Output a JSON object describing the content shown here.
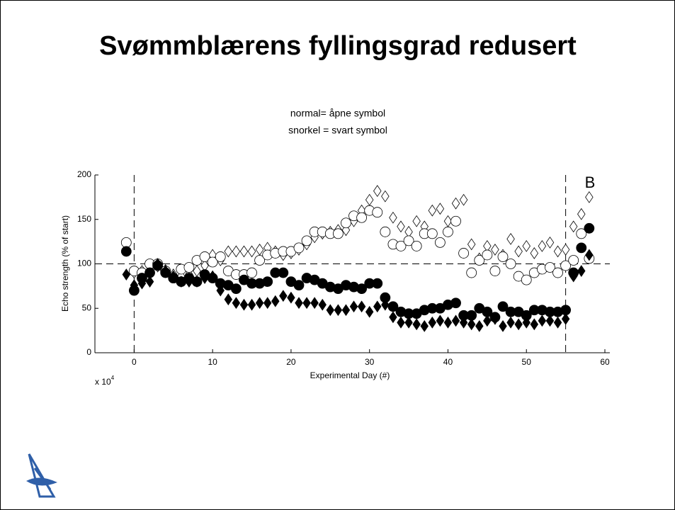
{
  "chart_data": {
    "type": "scatter",
    "title": "Svømmblærens fyllingsgrad redusert",
    "subtitle": [
      "normal= åpne symbol",
      "snorkel = svart symbol"
    ],
    "y_label": "Echo strength (% of start)",
    "x_label": "Experimental Day (#)",
    "x_multiplier": "x 10",
    "x_multiplier_exponent": "4",
    "panel_label": "B",
    "xlim": [
      -5,
      60
    ],
    "xticks": [
      0,
      10,
      20,
      30,
      40,
      50,
      60
    ],
    "ylim": [
      0,
      200
    ],
    "yticks": [
      0,
      50,
      100,
      150,
      200
    ],
    "vlines": [
      0,
      55
    ],
    "hline": 100,
    "x": [
      -1,
      0,
      1,
      2,
      3,
      4,
      5,
      6,
      7,
      8,
      9,
      10,
      11,
      12,
      13,
      14,
      15,
      16,
      17,
      18,
      19,
      20,
      21,
      22,
      23,
      24,
      25,
      26,
      27,
      28,
      29,
      30,
      31,
      32,
      33,
      34,
      35,
      36,
      37,
      38,
      39,
      40,
      41,
      42,
      43,
      44,
      45,
      46,
      47,
      48,
      49,
      50,
      51,
      52,
      53,
      54,
      55,
      56,
      57,
      58
    ],
    "series": [
      {
        "marker": "diamond",
        "filled": false,
        "color": "#000000",
        "values": [
          122,
          90,
          92,
          98,
          97,
          93,
          88,
          86,
          88,
          92,
          98,
          110,
          104,
          114,
          114,
          114,
          114,
          116,
          118,
          114,
          110,
          112,
          116,
          122,
          130,
          134,
          136,
          138,
          138,
          148,
          160,
          172,
          182,
          176,
          152,
          142,
          136,
          148,
          142,
          160,
          162,
          148,
          168,
          172,
          122,
          106,
          120,
          116,
          110,
          128,
          114,
          120,
          112,
          120,
          124,
          114,
          116,
          142,
          156,
          175
        ]
      },
      {
        "marker": "circle",
        "filled": false,
        "color": "#000000",
        "values": [
          124,
          92,
          90,
          100,
          100,
          92,
          84,
          94,
          96,
          104,
          108,
          102,
          108,
          92,
          88,
          88,
          90,
          104,
          110,
          112,
          114,
          114,
          118,
          126,
          136,
          136,
          134,
          134,
          146,
          154,
          152,
          160,
          158,
          136,
          122,
          120,
          126,
          120,
          134,
          134,
          124,
          136,
          148,
          112,
          90,
          104,
          110,
          92,
          108,
          100,
          86,
          82,
          90,
          94,
          96,
          90,
          98,
          104,
          134,
          106
        ]
      },
      {
        "marker": "circle",
        "filled": true,
        "color": "#000000",
        "values": [
          114,
          70,
          84,
          90,
          98,
          90,
          84,
          80,
          84,
          80,
          88,
          84,
          78,
          76,
          72,
          82,
          78,
          78,
          80,
          90,
          90,
          80,
          76,
          84,
          82,
          78,
          74,
          72,
          76,
          74,
          72,
          78,
          78,
          62,
          52,
          46,
          44,
          44,
          48,
          50,
          50,
          54,
          56,
          42,
          42,
          50,
          46,
          40,
          52,
          46,
          46,
          42,
          48,
          48,
          46,
          46,
          48,
          90,
          118,
          140
        ]
      },
      {
        "marker": "diamond",
        "filled": true,
        "color": "#000000",
        "values": [
          88,
          76,
          78,
          80,
          100,
          92,
          86,
          80,
          80,
          80,
          84,
          86,
          70,
          60,
          56,
          54,
          54,
          56,
          56,
          58,
          64,
          62,
          56,
          56,
          56,
          54,
          48,
          48,
          48,
          52,
          52,
          46,
          52,
          54,
          40,
          34,
          34,
          32,
          30,
          34,
          36,
          34,
          36,
          34,
          32,
          30,
          36,
          38,
          30,
          34,
          32,
          34,
          32,
          36,
          36,
          34,
          38,
          86,
          92,
          110
        ]
      }
    ]
  }
}
